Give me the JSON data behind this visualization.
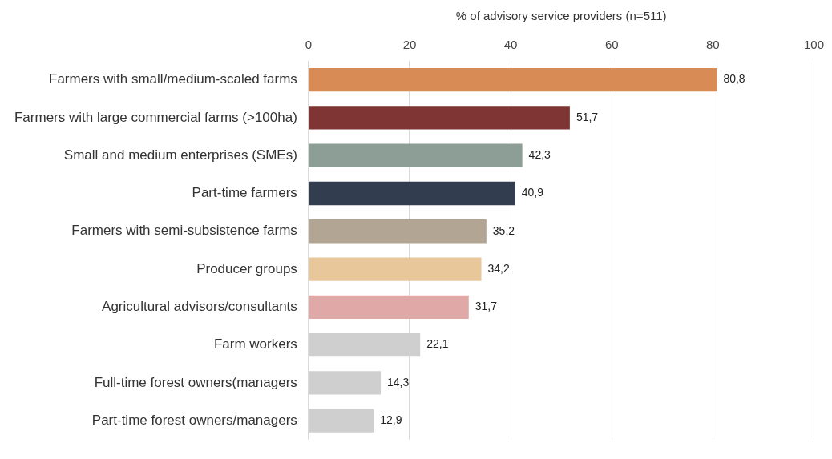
{
  "chart_data": {
    "type": "bar",
    "orientation": "horizontal",
    "xlabel": "% of advisory service providers (n=511)",
    "categories": [
      "Farmers with small/medium-scaled farms",
      "Farmers with large commercial farms (>100ha)",
      "Small and medium enterprises (SMEs)",
      "Part-time farmers",
      "Farmers with semi-subsistence farms",
      "Producer groups",
      "Agricultural advisors/consultants",
      "Farm workers",
      "Full-time forest owners(managers",
      "Part-time forest owners/managers"
    ],
    "values": [
      80.8,
      51.7,
      42.3,
      40.9,
      35.2,
      34.2,
      31.7,
      22.1,
      14.3,
      12.9
    ],
    "value_labels": [
      "80,8",
      "51,7",
      "42,3",
      "40,9",
      "35,2",
      "34,2",
      "31,7",
      "22,1",
      "14,3",
      "12,9"
    ],
    "colors": [
      "#d98b56",
      "#7f3533",
      "#8c9e96",
      "#323d4f",
      "#b2a594",
      "#e8c79b",
      "#e0a8a7",
      "#d0cfcf",
      "#d0cfcf",
      "#d0cfcf"
    ],
    "xlim": [
      0,
      100
    ],
    "xticks": [
      0,
      20,
      40,
      60,
      80,
      100
    ],
    "grid": "x",
    "legend": false
  }
}
